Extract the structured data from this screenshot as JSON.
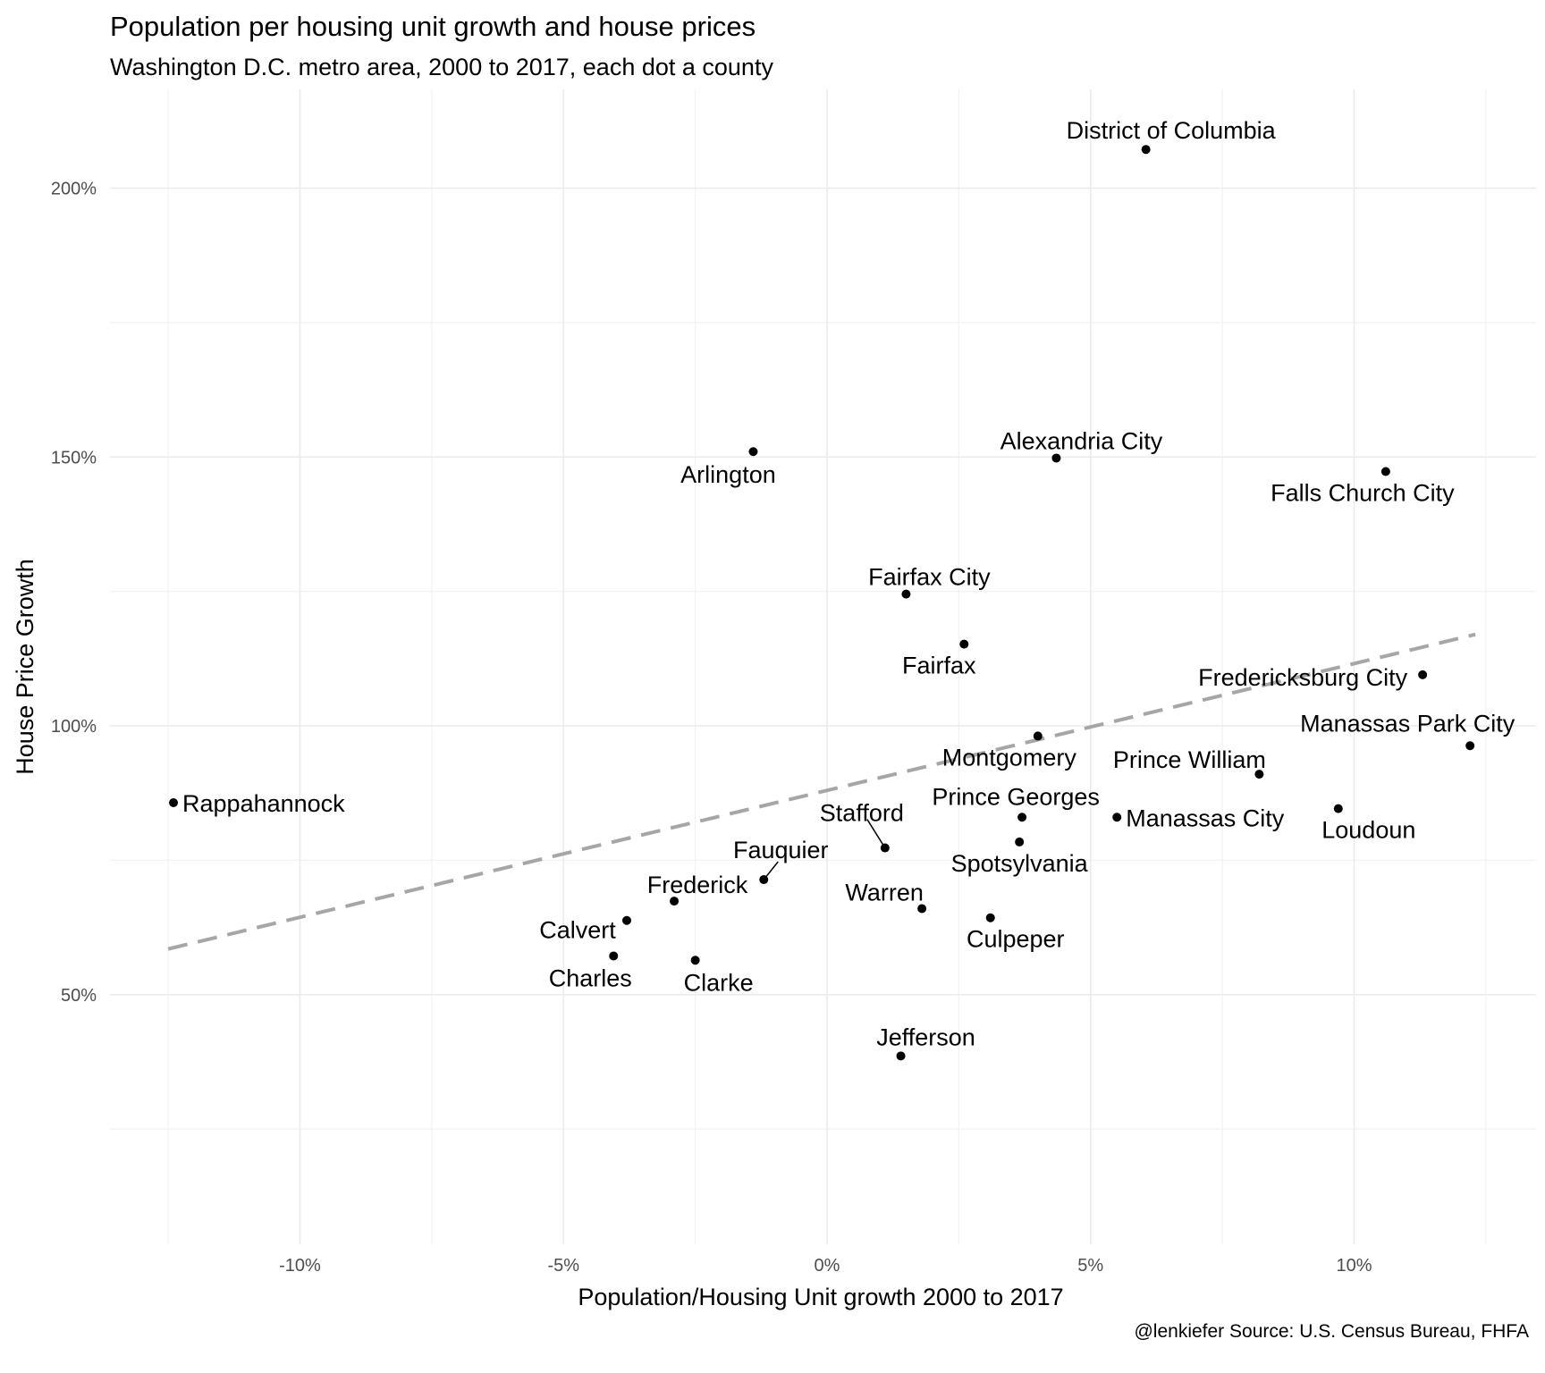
{
  "chart_data": {
    "type": "scatter",
    "title": "Population per housing unit growth and house prices",
    "subtitle": "Washington D.C. metro area, 2000 to 2017, each dot a county",
    "xlabel": "Population/Housing Unit growth 2000 to 2017",
    "ylabel": "House Price Growth",
    "caption": "@lenkiefer Source: U.S. Census Bureau, FHFA",
    "xlim": [
      -13.0,
      13.0
    ],
    "ylim": [
      17,
      219
    ],
    "x_ticks": [
      -10,
      -5,
      0,
      5,
      10
    ],
    "x_tick_labels": [
      "-10%",
      "-5%",
      "0%",
      "5%",
      "10%"
    ],
    "y_ticks": [
      50,
      100,
      150,
      200
    ],
    "y_tick_labels": [
      "50%",
      "100%",
      "150%",
      "200%"
    ],
    "grid": true,
    "trend_line": {
      "style": "dashed",
      "color": "#a6a6a6",
      "x": [
        -12.5,
        12.3
      ],
      "y": [
        58.5,
        117
      ]
    },
    "points": [
      {
        "name": "District of Columbia",
        "x": 6.05,
        "y": 207.2
      },
      {
        "name": "Arlington",
        "x": -1.4,
        "y": 151.0
      },
      {
        "name": "Alexandria City",
        "x": 4.35,
        "y": 149.8
      },
      {
        "name": "Falls Church City",
        "x": 10.6,
        "y": 147.3
      },
      {
        "name": "Fairfax City",
        "x": 1.5,
        "y": 124.5
      },
      {
        "name": "Fairfax",
        "x": 2.6,
        "y": 115.2
      },
      {
        "name": "Fredericksburg City",
        "x": 11.3,
        "y": 109.5
      },
      {
        "name": "Manassas Park City",
        "x": 12.2,
        "y": 96.3
      },
      {
        "name": "Montgomery",
        "x": 4.0,
        "y": 98.1
      },
      {
        "name": "Prince William",
        "x": 8.2,
        "y": 91.0
      },
      {
        "name": "Rappahannock",
        "x": -12.4,
        "y": 85.7
      },
      {
        "name": "Loudoun",
        "x": 9.7,
        "y": 84.6
      },
      {
        "name": "Manassas City",
        "x": 5.5,
        "y": 83.0
      },
      {
        "name": "Prince Georges",
        "x": 3.7,
        "y": 83.0
      },
      {
        "name": "Stafford",
        "x": 1.1,
        "y": 77.3
      },
      {
        "name": "Spotsylvania",
        "x": 3.65,
        "y": 78.4
      },
      {
        "name": "Fauquier",
        "x": -1.2,
        "y": 71.4
      },
      {
        "name": "Frederick",
        "x": -2.9,
        "y": 67.4
      },
      {
        "name": "Warren",
        "x": 1.8,
        "y": 66.0
      },
      {
        "name": "Culpeper",
        "x": 3.1,
        "y": 64.3
      },
      {
        "name": "Calvert",
        "x": -3.8,
        "y": 63.8
      },
      {
        "name": "Charles",
        "x": -4.05,
        "y": 57.2
      },
      {
        "name": "Clarke",
        "x": -2.5,
        "y": 56.4
      },
      {
        "name": "Jefferson",
        "x": 1.4,
        "y": 38.6
      }
    ]
  }
}
